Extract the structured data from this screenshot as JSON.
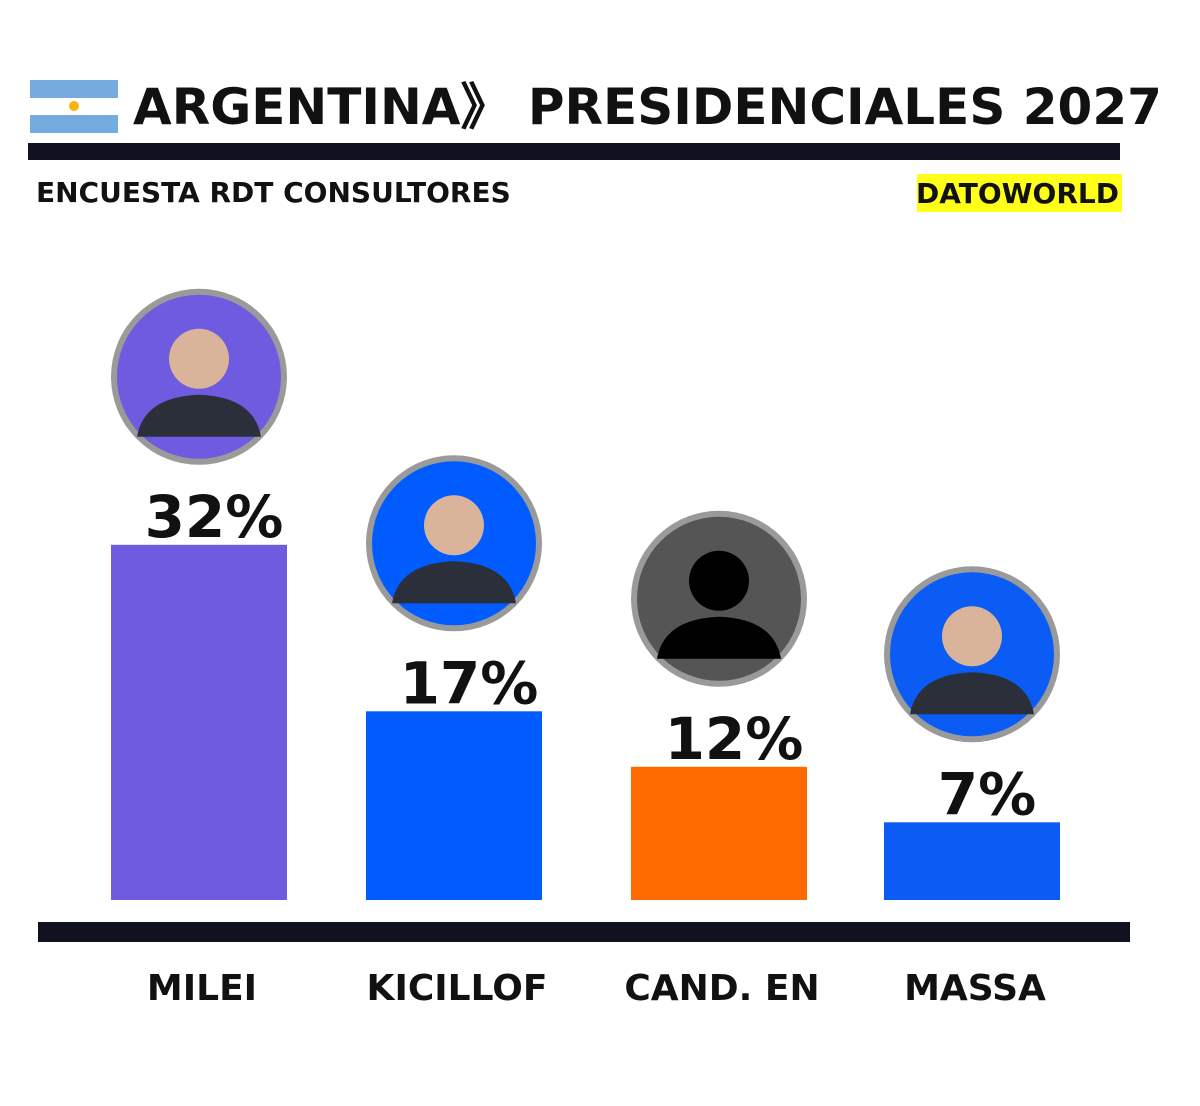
{
  "chart_data": {
    "type": "bar",
    "title": "ARGENTINA》 PRESIDENCIALES 2027",
    "subtitle": "ENCUESTA RDT CONSULTORES",
    "source": "DATOWORLD",
    "categories": [
      "MILEI",
      "KICILLOF",
      "CAND. EN",
      "MASSA"
    ],
    "values": [
      32,
      17,
      12,
      7
    ],
    "value_labels": [
      "32%",
      "17%",
      "12%",
      "7%"
    ],
    "colors": [
      "#6f5be0",
      "#005cff",
      "#ff6a00",
      "#0a5cf5"
    ]
  }
}
